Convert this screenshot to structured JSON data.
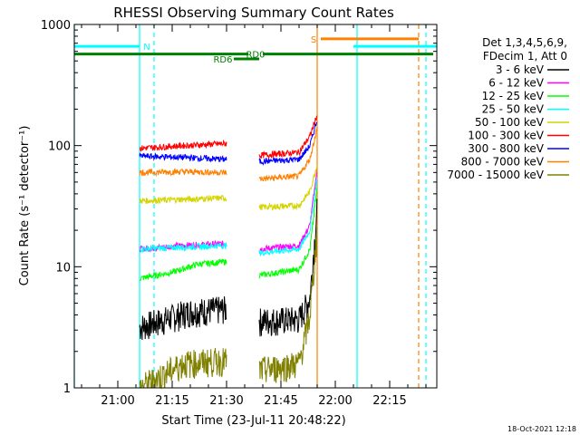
{
  "chart_data": {
    "type": "line",
    "title": "RHESSI Observing Summary Count Rates",
    "xlabel": "Start Time (23-Jul-11 20:48:22)",
    "ylabel": "Count Rate (s⁻¹ detector⁻¹)",
    "yscale": "log",
    "xlim": [
      "20:48",
      "22:28"
    ],
    "ylim": [
      1,
      1000
    ],
    "x_ticks": [
      "21:00",
      "21:15",
      "21:30",
      "21:45",
      "22:00",
      "22:15"
    ],
    "y_ticks": [
      "1",
      "10",
      "100",
      "1000"
    ],
    "timestamp": "18-Oct-2021 12:18",
    "legend_position": "top-right",
    "legend_header": [
      "Det 1,3,4,5,6,9,",
      "FDecim 1, Att 0"
    ],
    "segments": [
      {
        "start": "21:06",
        "end": "21:30"
      },
      {
        "start": "21:39",
        "end": "21:55"
      }
    ],
    "series": [
      {
        "name": "3 - 6 keV",
        "color": "#000000",
        "seg1": [
          [
            "21:06",
            3.2
          ],
          [
            "21:12",
            3.6
          ],
          [
            "21:20",
            4.3
          ],
          [
            "21:30",
            4.5
          ]
        ],
        "seg2": [
          [
            "21:39",
            3.6
          ],
          [
            "21:50",
            3.7
          ],
          [
            "21:53",
            5.5
          ],
          [
            "21:55",
            30
          ]
        ]
      },
      {
        "name": "6 - 12 keV",
        "color": "#ff00ff",
        "seg1": [
          [
            "21:06",
            14
          ],
          [
            "21:18",
            15
          ],
          [
            "21:30",
            15.5
          ]
        ],
        "seg2": [
          [
            "21:39",
            14
          ],
          [
            "21:50",
            15
          ],
          [
            "21:53",
            22
          ],
          [
            "21:55",
            65
          ]
        ]
      },
      {
        "name": "12 - 25 keV",
        "color": "#00ff00",
        "seg1": [
          [
            "21:06",
            8
          ],
          [
            "21:15",
            9
          ],
          [
            "21:22",
            10.5
          ],
          [
            "21:30",
            11
          ]
        ],
        "seg2": [
          [
            "21:39",
            8.5
          ],
          [
            "21:50",
            9.5
          ],
          [
            "21:53",
            14
          ],
          [
            "21:55",
            45
          ]
        ]
      },
      {
        "name": "25 - 50 keV",
        "color": "#00ffff",
        "seg1": [
          [
            "21:06",
            14
          ],
          [
            "21:18",
            14.5
          ],
          [
            "21:30",
            15
          ]
        ],
        "seg2": [
          [
            "21:39",
            13
          ],
          [
            "21:50",
            14
          ],
          [
            "21:53",
            20
          ],
          [
            "21:55",
            55
          ]
        ]
      },
      {
        "name": "50 - 100 keV",
        "color": "#d4d400",
        "seg1": [
          [
            "21:06",
            35
          ],
          [
            "21:18",
            36
          ],
          [
            "21:30",
            37
          ]
        ],
        "seg2": [
          [
            "21:39",
            31
          ],
          [
            "21:50",
            32
          ],
          [
            "21:53",
            42
          ],
          [
            "21:55",
            70
          ]
        ]
      },
      {
        "name": "100 - 300 keV",
        "color": "#ff0000",
        "seg1": [
          [
            "21:06",
            95
          ],
          [
            "21:18",
            100
          ],
          [
            "21:30",
            104
          ]
        ],
        "seg2": [
          [
            "21:39",
            83
          ],
          [
            "21:50",
            88
          ],
          [
            "21:53",
            120
          ],
          [
            "21:55",
            180
          ]
        ]
      },
      {
        "name": "300 - 800 keV",
        "color": "#0000ff",
        "seg1": [
          [
            "21:06",
            82
          ],
          [
            "21:18",
            80
          ],
          [
            "21:30",
            77
          ]
        ],
        "seg2": [
          [
            "21:39",
            74
          ],
          [
            "21:50",
            77
          ],
          [
            "21:53",
            100
          ],
          [
            "21:55",
            165
          ]
        ]
      },
      {
        "name": "800 - 7000 keV",
        "color": "#ff8000",
        "seg1": [
          [
            "21:06",
            60
          ],
          [
            "21:18",
            61
          ],
          [
            "21:30",
            60
          ]
        ],
        "seg2": [
          [
            "21:39",
            53
          ],
          [
            "21:50",
            56
          ],
          [
            "21:53",
            78
          ],
          [
            "21:55",
            140
          ]
        ]
      },
      {
        "name": "7000 - 15000 keV",
        "color": "#808000",
        "seg1": [
          [
            "21:06",
            1
          ],
          [
            "21:18",
            1.6
          ],
          [
            "21:30",
            1.7
          ]
        ],
        "seg2": [
          [
            "21:39",
            1.4
          ],
          [
            "21:50",
            1.6
          ],
          [
            "21:53",
            4
          ],
          [
            "21:55",
            20
          ]
        ]
      }
    ],
    "mode_bars": [
      {
        "label": "N",
        "color": "#00ffff",
        "y": 660,
        "spans": [
          [
            "20:48",
            "21:06"
          ],
          [
            "22:05",
            "22:28"
          ]
        ],
        "label_at": "21:08"
      },
      {
        "label": "S",
        "color": "#ff8000",
        "y": 760,
        "spans": [
          [
            "21:56",
            "22:23"
          ]
        ],
        "label_at": "21:54"
      },
      {
        "label": "RD0",
        "color": "#008000",
        "y": 570,
        "spans": [
          [
            "20:48",
            "21:36"
          ],
          [
            "21:40",
            "22:27"
          ]
        ],
        "label_at": "21:38"
      },
      {
        "label": "RD6",
        "color": "#008000",
        "y": 520,
        "spans": [
          [
            "21:32",
            "21:39"
          ]
        ],
        "label_at": "21:29"
      }
    ],
    "vertical_lines": [
      {
        "t": "20:48",
        "color": "#00ffff",
        "dashed": false
      },
      {
        "t": "21:06",
        "color": "#00ffff",
        "dashed": false
      },
      {
        "t": "21:10",
        "color": "#00ffff",
        "dashed": true
      },
      {
        "t": "21:55",
        "color": "#ff8000",
        "dashed": false
      },
      {
        "t": "22:06",
        "color": "#00ffff",
        "dashed": false
      },
      {
        "t": "22:23",
        "color": "#ff8000",
        "dashed": true
      },
      {
        "t": "22:25",
        "color": "#00ffff",
        "dashed": true
      }
    ]
  }
}
